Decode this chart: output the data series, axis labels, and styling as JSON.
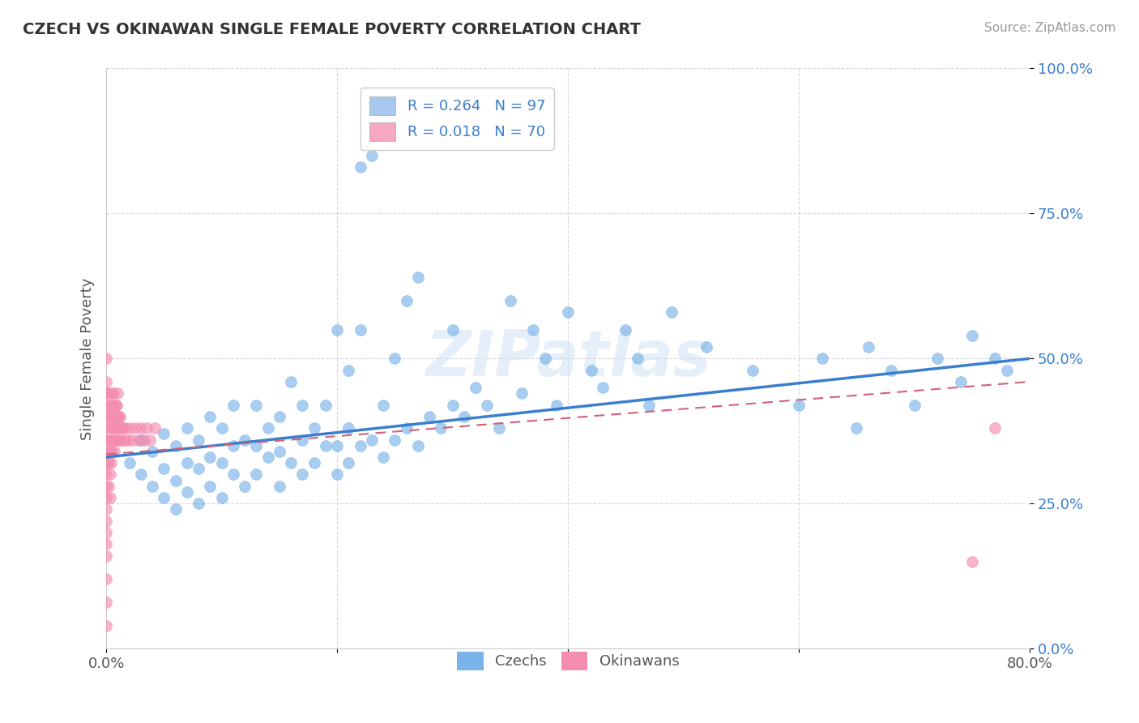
{
  "title": "CZECH VS OKINAWAN SINGLE FEMALE POVERTY CORRELATION CHART",
  "source": "Source: ZipAtlas.com",
  "ylabel": "Single Female Poverty",
  "watermark": "ZIPatlas",
  "legend_entries": [
    {
      "label": "R = 0.264   N = 97",
      "color": "#a8c8f0"
    },
    {
      "label": "R = 0.018   N = 70",
      "color": "#f5a8c0"
    }
  ],
  "legend_bottom": [
    "Czechs",
    "Okinawans"
  ],
  "czech_color": "#7ab3e8",
  "okinawan_color": "#f48cb0",
  "xlim": [
    0.0,
    0.8
  ],
  "ylim": [
    0.0,
    1.0
  ],
  "czech_x": [
    0.02,
    0.03,
    0.03,
    0.04,
    0.04,
    0.05,
    0.05,
    0.05,
    0.06,
    0.06,
    0.06,
    0.07,
    0.07,
    0.07,
    0.08,
    0.08,
    0.08,
    0.09,
    0.09,
    0.09,
    0.1,
    0.1,
    0.1,
    0.11,
    0.11,
    0.11,
    0.12,
    0.12,
    0.13,
    0.13,
    0.13,
    0.14,
    0.14,
    0.15,
    0.15,
    0.15,
    0.16,
    0.16,
    0.17,
    0.17,
    0.17,
    0.18,
    0.18,
    0.19,
    0.19,
    0.2,
    0.2,
    0.2,
    0.21,
    0.21,
    0.21,
    0.22,
    0.22,
    0.22,
    0.23,
    0.23,
    0.24,
    0.24,
    0.25,
    0.25,
    0.26,
    0.26,
    0.27,
    0.27,
    0.28,
    0.29,
    0.3,
    0.3,
    0.31,
    0.32,
    0.33,
    0.34,
    0.35,
    0.36,
    0.37,
    0.38,
    0.39,
    0.4,
    0.42,
    0.43,
    0.45,
    0.46,
    0.47,
    0.49,
    0.52,
    0.56,
    0.6,
    0.62,
    0.65,
    0.66,
    0.68,
    0.7,
    0.72,
    0.74,
    0.75,
    0.77,
    0.78
  ],
  "czech_y": [
    0.32,
    0.3,
    0.36,
    0.28,
    0.34,
    0.26,
    0.31,
    0.37,
    0.24,
    0.29,
    0.35,
    0.27,
    0.32,
    0.38,
    0.25,
    0.31,
    0.36,
    0.28,
    0.33,
    0.4,
    0.26,
    0.32,
    0.38,
    0.3,
    0.35,
    0.42,
    0.28,
    0.36,
    0.3,
    0.35,
    0.42,
    0.33,
    0.38,
    0.28,
    0.34,
    0.4,
    0.32,
    0.46,
    0.3,
    0.36,
    0.42,
    0.32,
    0.38,
    0.35,
    0.42,
    0.3,
    0.35,
    0.55,
    0.32,
    0.38,
    0.48,
    0.35,
    0.55,
    0.83,
    0.36,
    0.85,
    0.33,
    0.42,
    0.36,
    0.5,
    0.38,
    0.6,
    0.35,
    0.64,
    0.4,
    0.38,
    0.42,
    0.55,
    0.4,
    0.45,
    0.42,
    0.38,
    0.6,
    0.44,
    0.55,
    0.5,
    0.42,
    0.58,
    0.48,
    0.45,
    0.55,
    0.5,
    0.42,
    0.58,
    0.52,
    0.48,
    0.42,
    0.5,
    0.38,
    0.52,
    0.48,
    0.42,
    0.5,
    0.46,
    0.54,
    0.5,
    0.48
  ],
  "okinawan_x": [
    0.0,
    0.0,
    0.0,
    0.0,
    0.0,
    0.0,
    0.0,
    0.0,
    0.0,
    0.0,
    0.0,
    0.0,
    0.0,
    0.0,
    0.0,
    0.0,
    0.0,
    0.0,
    0.0,
    0.0,
    0.002,
    0.002,
    0.002,
    0.002,
    0.002,
    0.003,
    0.003,
    0.003,
    0.003,
    0.003,
    0.004,
    0.004,
    0.004,
    0.004,
    0.005,
    0.005,
    0.005,
    0.006,
    0.006,
    0.006,
    0.007,
    0.007,
    0.007,
    0.008,
    0.008,
    0.009,
    0.009,
    0.01,
    0.01,
    0.01,
    0.011,
    0.011,
    0.012,
    0.012,
    0.013,
    0.014,
    0.015,
    0.016,
    0.018,
    0.02,
    0.022,
    0.025,
    0.028,
    0.03,
    0.033,
    0.035,
    0.038,
    0.042,
    0.75,
    0.77
  ],
  "okinawan_y": [
    0.44,
    0.4,
    0.36,
    0.32,
    0.28,
    0.24,
    0.2,
    0.16,
    0.12,
    0.08,
    0.04,
    0.38,
    0.34,
    0.3,
    0.26,
    0.22,
    0.18,
    0.42,
    0.46,
    0.5,
    0.44,
    0.4,
    0.36,
    0.32,
    0.28,
    0.42,
    0.38,
    0.34,
    0.3,
    0.26,
    0.44,
    0.4,
    0.36,
    0.32,
    0.42,
    0.38,
    0.34,
    0.44,
    0.4,
    0.36,
    0.42,
    0.38,
    0.34,
    0.42,
    0.38,
    0.42,
    0.38,
    0.4,
    0.36,
    0.44,
    0.4,
    0.36,
    0.4,
    0.36,
    0.38,
    0.38,
    0.36,
    0.38,
    0.36,
    0.38,
    0.36,
    0.38,
    0.36,
    0.38,
    0.36,
    0.38,
    0.36,
    0.38,
    0.15,
    0.38
  ]
}
